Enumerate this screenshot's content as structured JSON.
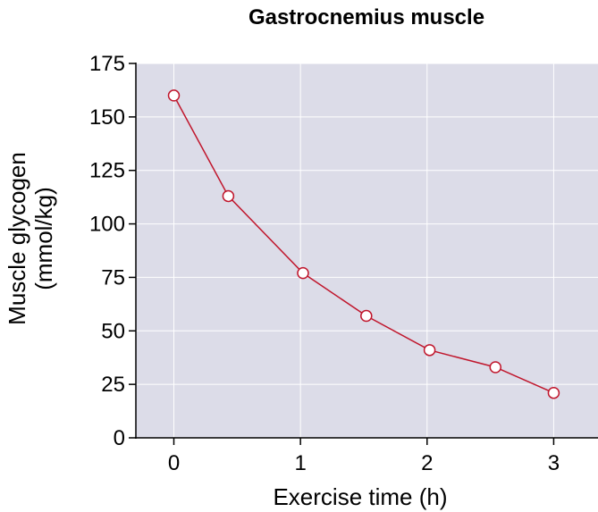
{
  "chart_data": {
    "type": "line",
    "title": "Gastrocnemius muscle",
    "xlabel": "Exercise time (h)",
    "ylabel_line1": "Muscle glycogen",
    "ylabel_line2": "(mmol/kg)",
    "xlim": [
      -0.3,
      3.35
    ],
    "ylim": [
      0,
      175
    ],
    "xticks": [
      0,
      1,
      2,
      3
    ],
    "yticks": [
      0,
      25,
      50,
      75,
      100,
      125,
      150,
      175
    ],
    "grid": true,
    "series": [
      {
        "x": [
          0,
          0.43,
          1.02,
          1.52,
          2.02,
          2.54,
          3.0
        ],
        "y": [
          160,
          113,
          77,
          57,
          41,
          33,
          21
        ]
      }
    ],
    "colors": {
      "plot_background": "#dcdce8",
      "gridline": "#ffffff",
      "line": "#c0162c",
      "marker_fill": "#ffffff",
      "axis": "#000000"
    }
  }
}
